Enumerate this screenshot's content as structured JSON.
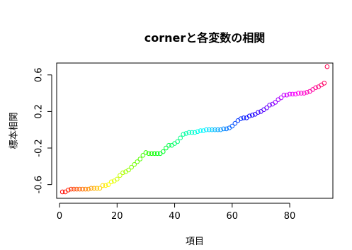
{
  "chart_data": {
    "type": "scatter",
    "title": "cornerと各変数の相関",
    "xlabel": "項目",
    "ylabel": "標本相関",
    "xlim": [
      -1,
      95
    ],
    "ylim": [
      -0.75,
      0.73
    ],
    "x_ticks": [
      0,
      20,
      40,
      60,
      80
    ],
    "x_tick_labels": [
      "0",
      "20",
      "40",
      "60",
      "80"
    ],
    "y_ticks": [
      -0.6,
      -0.2,
      0.2,
      0.6
    ],
    "y_tick_labels": [
      "-0.6",
      "-0.2",
      "0.2",
      "0.6"
    ],
    "marker": "open-circle",
    "color_scheme": "rainbow",
    "grid": false,
    "legend": "none",
    "series": [
      {
        "x": [
          1,
          2,
          3,
          4,
          5,
          6,
          7,
          8,
          9,
          10,
          11,
          12,
          13,
          14,
          15,
          16,
          17,
          18,
          19,
          20,
          21,
          22,
          23,
          24,
          25,
          26,
          27,
          28,
          29,
          30,
          31,
          32,
          33,
          34,
          35,
          36,
          37,
          38,
          39,
          40,
          41,
          42,
          43,
          44,
          45,
          46,
          47,
          48,
          49,
          50,
          51,
          52,
          53,
          54,
          55,
          56,
          57,
          58,
          59,
          60,
          61,
          62,
          63,
          64,
          65,
          66,
          67,
          68,
          69,
          70,
          71,
          72,
          73,
          74,
          75,
          76,
          77,
          78,
          79,
          80,
          81,
          82,
          83,
          84,
          85,
          86,
          87,
          88,
          89,
          90,
          91,
          92,
          93
        ],
        "y": [
          -0.68,
          -0.68,
          -0.66,
          -0.65,
          -0.65,
          -0.65,
          -0.65,
          -0.65,
          -0.65,
          -0.65,
          -0.64,
          -0.64,
          -0.64,
          -0.64,
          -0.61,
          -0.61,
          -0.6,
          -0.57,
          -0.56,
          -0.54,
          -0.5,
          -0.47,
          -0.46,
          -0.44,
          -0.41,
          -0.38,
          -0.35,
          -0.32,
          -0.28,
          -0.25,
          -0.26,
          -0.26,
          -0.26,
          -0.26,
          -0.26,
          -0.24,
          -0.2,
          -0.17,
          -0.17,
          -0.15,
          -0.13,
          -0.09,
          -0.05,
          -0.04,
          -0.03,
          -0.03,
          -0.03,
          -0.02,
          -0.01,
          -0.01,
          0.0,
          0.0,
          0.0,
          0.0,
          0.0,
          0.0,
          0.01,
          0.01,
          0.02,
          0.04,
          0.07,
          0.1,
          0.12,
          0.13,
          0.13,
          0.15,
          0.16,
          0.17,
          0.19,
          0.2,
          0.22,
          0.24,
          0.27,
          0.28,
          0.3,
          0.33,
          0.35,
          0.38,
          0.38,
          0.39,
          0.39,
          0.39,
          0.4,
          0.4,
          0.4,
          0.41,
          0.42,
          0.44,
          0.46,
          0.47,
          0.49,
          0.51,
          0.69
        ]
      }
    ]
  }
}
